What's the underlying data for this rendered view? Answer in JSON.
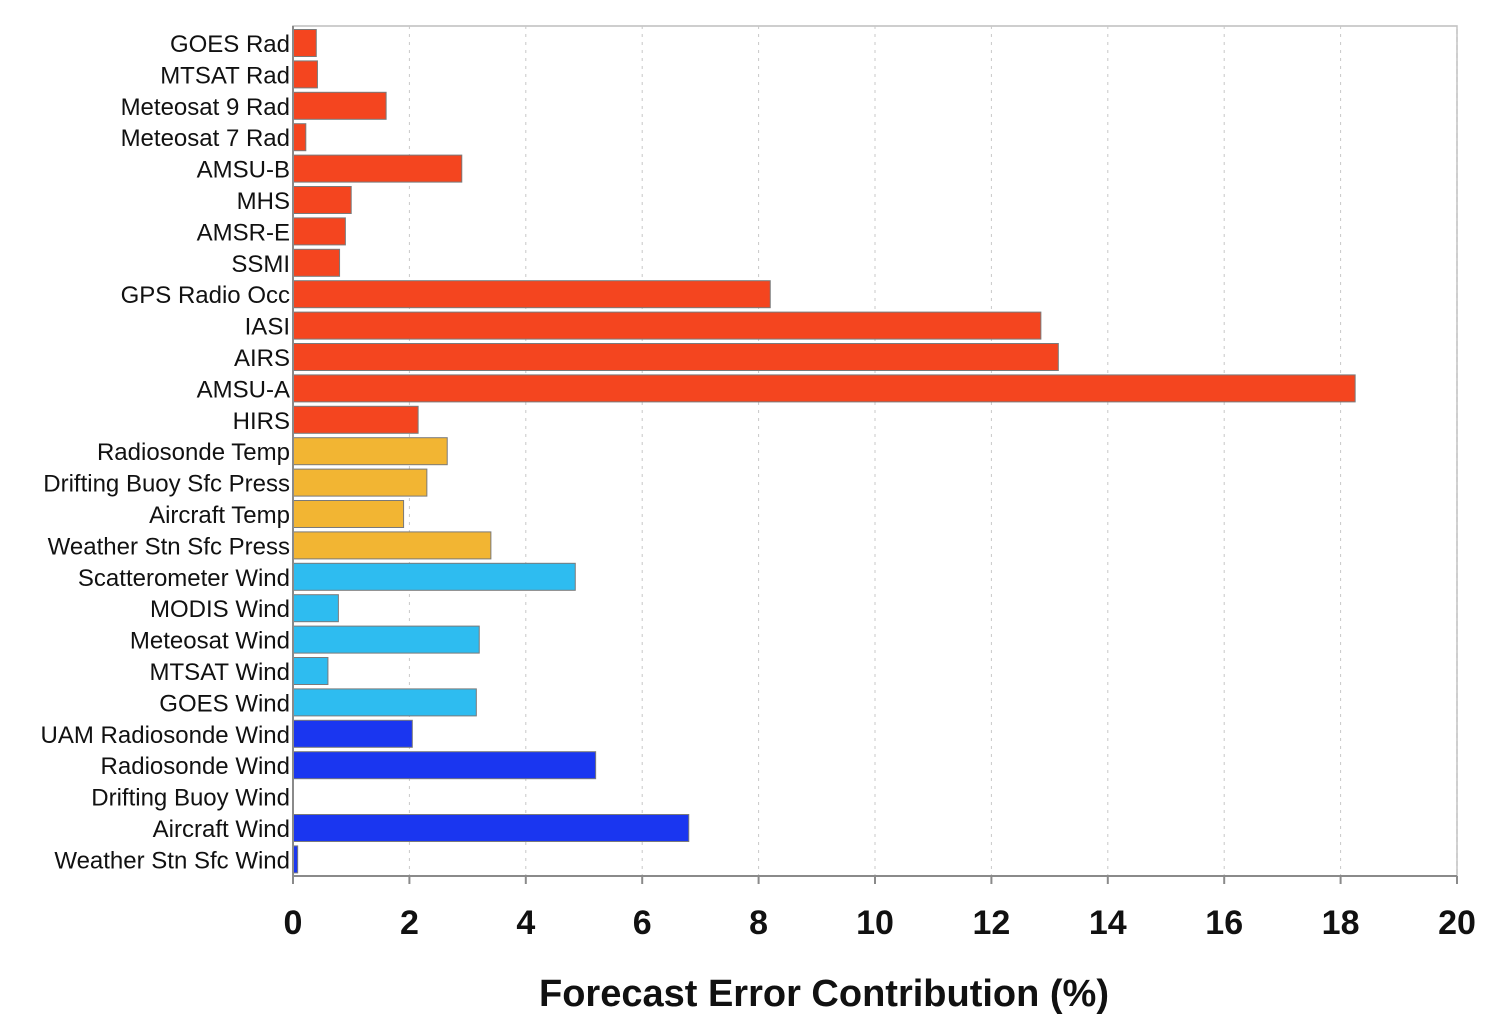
{
  "chart_data": {
    "type": "bar",
    "orientation": "horizontal",
    "title": "",
    "xlabel": "Forecast Error Contribution (%)",
    "ylabel": "",
    "xlim": [
      0,
      20
    ],
    "xticks": [
      0,
      2,
      4,
      6,
      8,
      10,
      12,
      14,
      16,
      18,
      20
    ],
    "grid": "vertical dashed",
    "colors": {
      "satellite_radiance": "#f4451f",
      "surface_temp": "#f2b533",
      "satellite_wind": "#2ebcf0",
      "conventional_wind": "#1a36f0"
    },
    "bars": [
      {
        "label": "GOES Rad",
        "value": 0.4,
        "group": "satellite_radiance"
      },
      {
        "label": "MTSAT Rad",
        "value": 0.42,
        "group": "satellite_radiance"
      },
      {
        "label": "Meteosat 9 Rad",
        "value": 1.6,
        "group": "satellite_radiance"
      },
      {
        "label": "Meteosat 7 Rad",
        "value": 0.22,
        "group": "satellite_radiance"
      },
      {
        "label": "AMSU-B",
        "value": 2.9,
        "group": "satellite_radiance"
      },
      {
        "label": "MHS",
        "value": 1.0,
        "group": "satellite_radiance"
      },
      {
        "label": "AMSR-E",
        "value": 0.9,
        "group": "satellite_radiance"
      },
      {
        "label": "SSMI",
        "value": 0.8,
        "group": "satellite_radiance"
      },
      {
        "label": "GPS Radio Occ",
        "value": 8.2,
        "group": "satellite_radiance"
      },
      {
        "label": "IASI",
        "value": 12.85,
        "group": "satellite_radiance"
      },
      {
        "label": "AIRS",
        "value": 13.15,
        "group": "satellite_radiance"
      },
      {
        "label": "AMSU-A",
        "value": 18.25,
        "group": "satellite_radiance"
      },
      {
        "label": "HIRS",
        "value": 2.15,
        "group": "satellite_radiance"
      },
      {
        "label": "Radiosonde Temp",
        "value": 2.65,
        "group": "surface_temp"
      },
      {
        "label": "Drifting Buoy Sfc Press",
        "value": 2.3,
        "group": "surface_temp"
      },
      {
        "label": "Aircraft Temp",
        "value": 1.9,
        "group": "surface_temp"
      },
      {
        "label": "Weather Stn Sfc Press",
        "value": 3.4,
        "group": "surface_temp"
      },
      {
        "label": "Scatterometer Wind",
        "value": 4.85,
        "group": "satellite_wind"
      },
      {
        "label": "MODIS Wind",
        "value": 0.78,
        "group": "satellite_wind"
      },
      {
        "label": "Meteosat Wind",
        "value": 3.2,
        "group": "satellite_wind"
      },
      {
        "label": "MTSAT Wind",
        "value": 0.6,
        "group": "satellite_wind"
      },
      {
        "label": "GOES Wind",
        "value": 3.15,
        "group": "satellite_wind"
      },
      {
        "label": "UAM Radiosonde Wind",
        "value": 2.05,
        "group": "conventional_wind"
      },
      {
        "label": "Radiosonde Wind",
        "value": 5.2,
        "group": "conventional_wind"
      },
      {
        "label": "Drifting Buoy Wind",
        "value": 0.0,
        "group": "conventional_wind"
      },
      {
        "label": "Aircraft Wind",
        "value": 6.8,
        "group": "conventional_wind"
      },
      {
        "label": "Weather Stn Sfc Wind",
        "value": 0.08,
        "group": "conventional_wind"
      }
    ]
  }
}
